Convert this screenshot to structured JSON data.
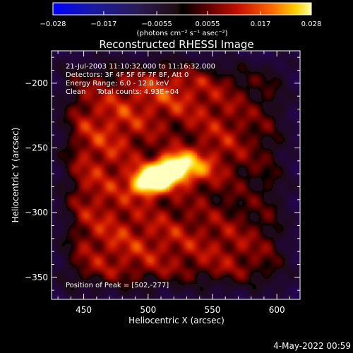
{
  "chart_data": {
    "type": "heatmap",
    "title": "Reconstructed RHESSI Image",
    "xlabel": "Heliocentric X (arcsec)",
    "ylabel": "Heliocentric Y (arcsec)",
    "xlim": [
      425,
      618
    ],
    "ylim": [
      -367,
      -175
    ],
    "x_ticks": [
      450,
      500,
      550,
      600
    ],
    "y_ticks": [
      -200,
      -250,
      -300,
      -350
    ],
    "annotations": [
      "21-Jul-2003 11:10:32.000 to 11:16:32.000",
      "Detectors: 3F 4F 5F 6F 7F 8F, Att 0",
      "Energy Range: 6.0 - 12.0 keV",
      "Clean     Total counts: 4.93E+04"
    ],
    "peak_label": "Position of Peak = [502,-277]",
    "peak": {
      "x": 502,
      "y": -277
    },
    "colorbar": {
      "min": -0.028,
      "max": 0.028,
      "tick_labels": [
        "-0.028",
        "-0.017",
        "-0.0055",
        "0.0055",
        "0.017",
        "0.028"
      ],
      "tick_values": [
        -0.028,
        -0.017,
        -0.0055,
        0.0055,
        0.017,
        0.028
      ],
      "unit_label": "(photons cm⁻² s⁻¹ asec⁻²)"
    },
    "features": [
      {
        "x": 500,
        "y": -277,
        "sx": 10,
        "sy": 7,
        "amp": 0.027
      },
      {
        "x": 512,
        "y": -270,
        "sx": 11,
        "sy": 7,
        "amp": 0.024
      },
      {
        "x": 522,
        "y": -263,
        "sx": 9,
        "sy": 7,
        "amp": 0.022
      },
      {
        "x": 538,
        "y": -265,
        "sx": 12,
        "sy": 10,
        "amp": 0.011
      },
      {
        "x": 470,
        "y": -230,
        "sx": 28,
        "sy": 25,
        "amp": 0.01
      },
      {
        "x": 520,
        "y": -205,
        "sx": 25,
        "sy": 18,
        "amp": 0.01
      },
      {
        "x": 560,
        "y": -240,
        "sx": 20,
        "sy": 25,
        "amp": 0.008
      },
      {
        "x": 520,
        "y": -320,
        "sx": 30,
        "sy": 25,
        "amp": 0.008
      },
      {
        "x": 570,
        "y": -330,
        "sx": 20,
        "sy": 20,
        "amp": 0.006
      },
      {
        "x": 470,
        "y": -330,
        "sx": 25,
        "sy": 25,
        "amp": 0.007
      },
      {
        "x": 460,
        "y": -280,
        "sx": 20,
        "sy": 25,
        "amp": 0.007
      }
    ]
  },
  "footer": {
    "timestamp": "4-May-2022 00:59"
  }
}
